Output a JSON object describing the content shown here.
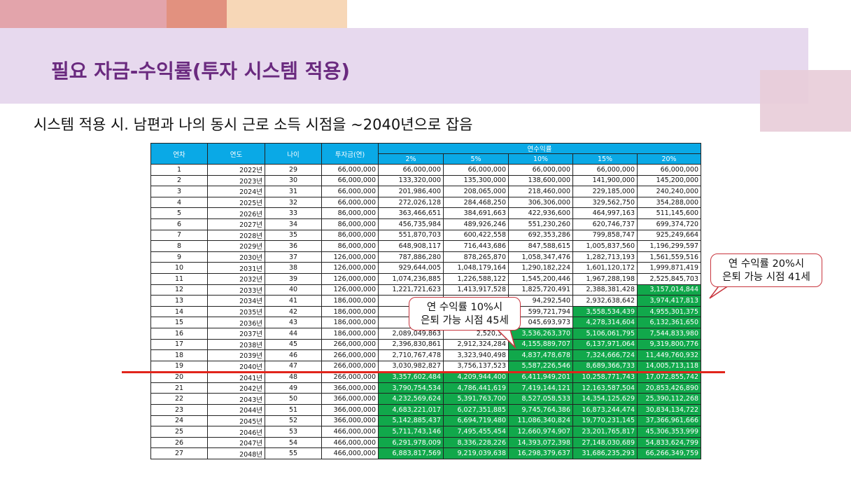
{
  "title": "필요 자금-수익률(투자 시스템 적용)",
  "subtitle": "시스템 적용 시. 남편과 나의 동시 근로 소득 시점을 ~2040년으로 잡음",
  "table": {
    "headers": {
      "period": "연차",
      "year": "연도",
      "age": "나이",
      "invest": "투자금(연)",
      "rate_group": "연수익률"
    },
    "rates": [
      "2%",
      "5%",
      "10%",
      "15%",
      "20%"
    ],
    "rows": [
      [
        "1",
        "2022년",
        "29",
        "66,000,000",
        "66,000,000",
        "66,000,000",
        "66,000,000",
        "66,000,000",
        "66,000,000"
      ],
      [
        "2",
        "2023년",
        "30",
        "66,000,000",
        "133,320,000",
        "135,300,000",
        "138,600,000",
        "141,900,000",
        "145,200,000"
      ],
      [
        "3",
        "2024년",
        "31",
        "66,000,000",
        "201,986,400",
        "208,065,000",
        "218,460,000",
        "229,185,000",
        "240,240,000"
      ],
      [
        "4",
        "2025년",
        "32",
        "66,000,000",
        "272,026,128",
        "284,468,250",
        "306,306,000",
        "329,562,750",
        "354,288,000"
      ],
      [
        "5",
        "2026년",
        "33",
        "86,000,000",
        "363,466,651",
        "384,691,663",
        "422,936,600",
        "464,997,163",
        "511,145,600"
      ],
      [
        "6",
        "2027년",
        "34",
        "86,000,000",
        "456,735,984",
        "489,926,246",
        "551,230,260",
        "620,746,737",
        "699,374,720"
      ],
      [
        "7",
        "2028년",
        "35",
        "86,000,000",
        "551,870,703",
        "600,422,558",
        "692,353,286",
        "799,858,747",
        "925,249,664"
      ],
      [
        "8",
        "2029년",
        "36",
        "86,000,000",
        "648,908,117",
        "716,443,686",
        "847,588,615",
        "1,005,837,560",
        "1,196,299,597"
      ],
      [
        "9",
        "2030년",
        "37",
        "126,000,000",
        "787,886,280",
        "878,265,870",
        "1,058,347,476",
        "1,282,713,193",
        "1,561,559,516"
      ],
      [
        "10",
        "2031년",
        "38",
        "126,000,000",
        "929,644,005",
        "1,048,179,164",
        "1,290,182,224",
        "1,601,120,172",
        "1,999,871,419"
      ],
      [
        "11",
        "2032년",
        "39",
        "126,000,000",
        "1,074,236,885",
        "1,226,588,122",
        "1,545,200,446",
        "1,967,288,198",
        "2,525,845,703"
      ],
      [
        "12",
        "2033년",
        "40",
        "126,000,000",
        "1,221,721,623",
        "1,413,917,528",
        "1,825,720,491",
        "2,388,381,428",
        "3,157,014,844"
      ],
      [
        "13",
        "2034년",
        "41",
        "186,000,000",
        "1,43",
        "",
        "94,292,540",
        "2,932,638,642",
        "3,974,417,813"
      ],
      [
        "14",
        "2035년",
        "42",
        "186,000,000",
        "1,64",
        "",
        "599,721,794",
        "3,558,534,439",
        "4,955,301,375"
      ],
      [
        "15",
        "2036년",
        "43",
        "186,000,000",
        "1,86",
        "",
        "045,693,973",
        "4,278,314,604",
        "6,132,361,650"
      ],
      [
        "16",
        "2037년",
        "44",
        "186,000,000",
        "2,089,049,863",
        "2,520,30",
        "3,536,263,370",
        "5,106,061,795",
        "7,544,833,980"
      ],
      [
        "17",
        "2038년",
        "45",
        "266,000,000",
        "2,396,830,861",
        "2,912,324,284",
        "4,155,889,707",
        "6,137,971,064",
        "9,319,800,776"
      ],
      [
        "18",
        "2039년",
        "46",
        "266,000,000",
        "2,710,767,478",
        "3,323,940,498",
        "4,837,478,678",
        "7,324,666,724",
        "11,449,760,932"
      ],
      [
        "19",
        "2040년",
        "47",
        "266,000,000",
        "3,030,982,827",
        "3,756,137,523",
        "5,587,226,546",
        "8,689,366,733",
        "14,005,713,118"
      ],
      [
        "20",
        "2041년",
        "48",
        "266,000,000",
        "3,357,602,484",
        "4,209,944,400",
        "6,411,949,201",
        "10,258,771,743",
        "17,072,855,742"
      ],
      [
        "21",
        "2042년",
        "49",
        "366,000,000",
        "3,790,754,534",
        "4,786,441,619",
        "7,419,144,121",
        "12,163,587,504",
        "20,853,426,890"
      ],
      [
        "22",
        "2043년",
        "50",
        "366,000,000",
        "4,232,569,624",
        "5,391,763,700",
        "8,527,058,533",
        "14,354,125,629",
        "25,390,112,268"
      ],
      [
        "23",
        "2044년",
        "51",
        "366,000,000",
        "4,683,221,017",
        "6,027,351,885",
        "9,745,764,386",
        "16,873,244,474",
        "30,834,134,722"
      ],
      [
        "24",
        "2045년",
        "52",
        "366,000,000",
        "5,142,885,437",
        "6,694,719,480",
        "11,086,340,824",
        "19,770,231,145",
        "37,366,961,666"
      ],
      [
        "25",
        "2046년",
        "53",
        "466,000,000",
        "5,711,743,146",
        "7,495,455,454",
        "12,660,974,907",
        "23,201,765,817",
        "45,306,353,999"
      ],
      [
        "26",
        "2047년",
        "54",
        "466,000,000",
        "6,291,978,009",
        "8,336,228,226",
        "14,393,072,398",
        "27,148,030,689",
        "54,833,624,799"
      ],
      [
        "27",
        "2048년",
        "55",
        "466,000,000",
        "6,883,817,569",
        "9,219,039,638",
        "16,298,379,637",
        "31,686,235,293",
        "66,266,349,759"
      ]
    ],
    "green_start_by_col": [
      20,
      20,
      16,
      14,
      12
    ],
    "highlight_color": "#11a84b"
  },
  "callout_20": {
    "line1": "연 수익률 20%시",
    "line2": "은퇴 가능 시점 41세"
  },
  "callout_10": {
    "line1": "연 수익률 10%시",
    "line2": "은퇴 가능 시점 45세"
  },
  "colors": {
    "title": "#6a2a7f",
    "header": "#0aa9e6",
    "redline": "#e1251b",
    "band": "#e7d9ee"
  }
}
